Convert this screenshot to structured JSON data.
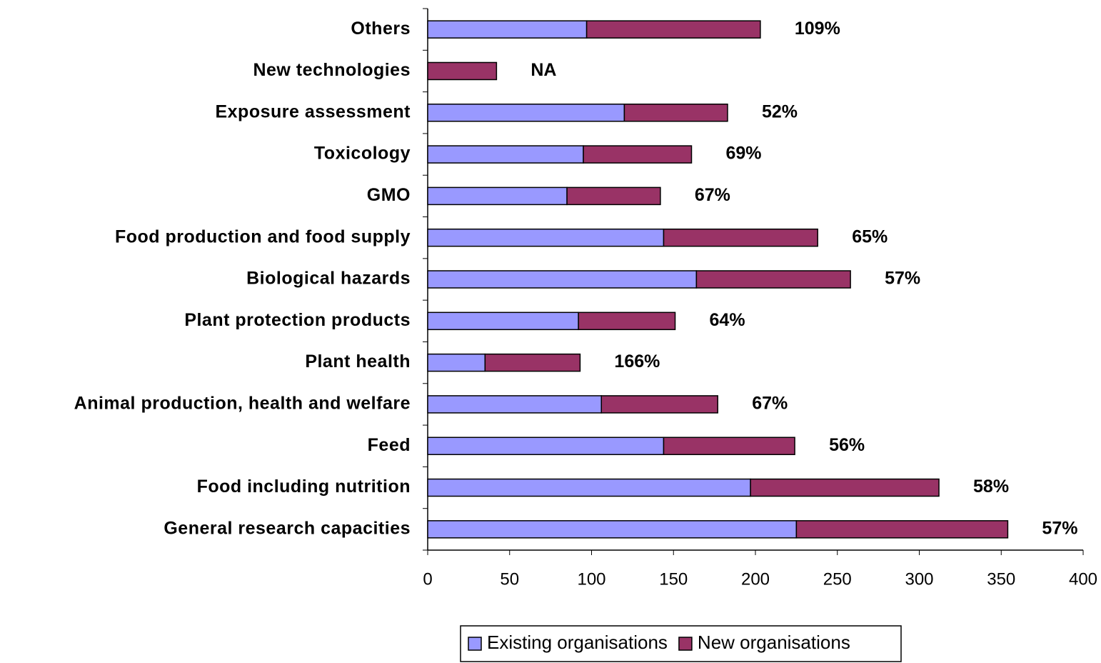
{
  "chart_data": {
    "type": "stacked_barh",
    "categories": [
      "Others",
      "New technologies",
      "Exposure assessment",
      "Toxicology",
      "GMO",
      "Food production and food supply",
      "Biological hazards",
      "Plant protection products",
      "Plant health",
      "Animal production, health and welfare",
      "Feed",
      "Food including nutrition",
      "General research capacities"
    ],
    "series": [
      {
        "name": "Existing organisations",
        "color": "#9999ff",
        "values": [
          97,
          null,
          120,
          95,
          85,
          144,
          164,
          92,
          35,
          106,
          144,
          197,
          225
        ]
      },
      {
        "name": "New organisations",
        "color": "#993366",
        "values": [
          106,
          42,
          63,
          66,
          57,
          94,
          94,
          59,
          58,
          71,
          80,
          115,
          129
        ]
      }
    ],
    "annotations": [
      "109%",
      "NA",
      "52%",
      "69%",
      "67%",
      "65%",
      "57%",
      "64%",
      "166%",
      "67%",
      "56%",
      "58%",
      "57%"
    ],
    "xlim": [
      0,
      400
    ],
    "xticks": [
      0,
      50,
      100,
      150,
      200,
      250,
      300,
      350,
      400
    ],
    "legend": "bottom"
  }
}
